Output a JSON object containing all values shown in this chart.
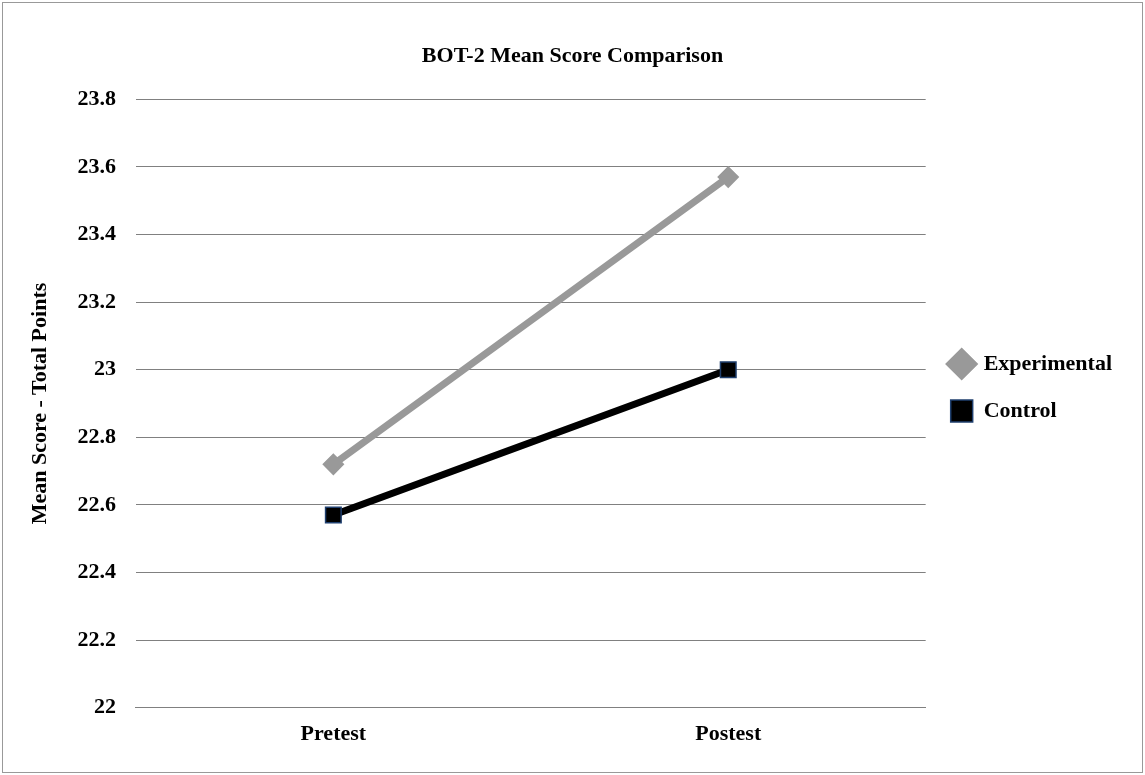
{
  "chart_data": {
    "type": "line",
    "title": "BOT-2 Mean Score Comparison",
    "ylabel": "Mean Score - Total Points",
    "categories": [
      "Pretest",
      "Postest"
    ],
    "series": [
      {
        "name": "Experimental",
        "color": "#999999",
        "values": [
          22.72,
          23.57
        ],
        "marker": "diamond"
      },
      {
        "name": "Control",
        "color": "#000000",
        "values": [
          22.57,
          23.0
        ],
        "marker": "square"
      }
    ],
    "ylim": [
      22,
      23.8
    ],
    "yticks": [
      22,
      22.2,
      22.4,
      22.6,
      22.8,
      23,
      23.2,
      23.4,
      23.6,
      23.8
    ],
    "grid": "y",
    "legend": "right",
    "line_style": "solid"
  }
}
